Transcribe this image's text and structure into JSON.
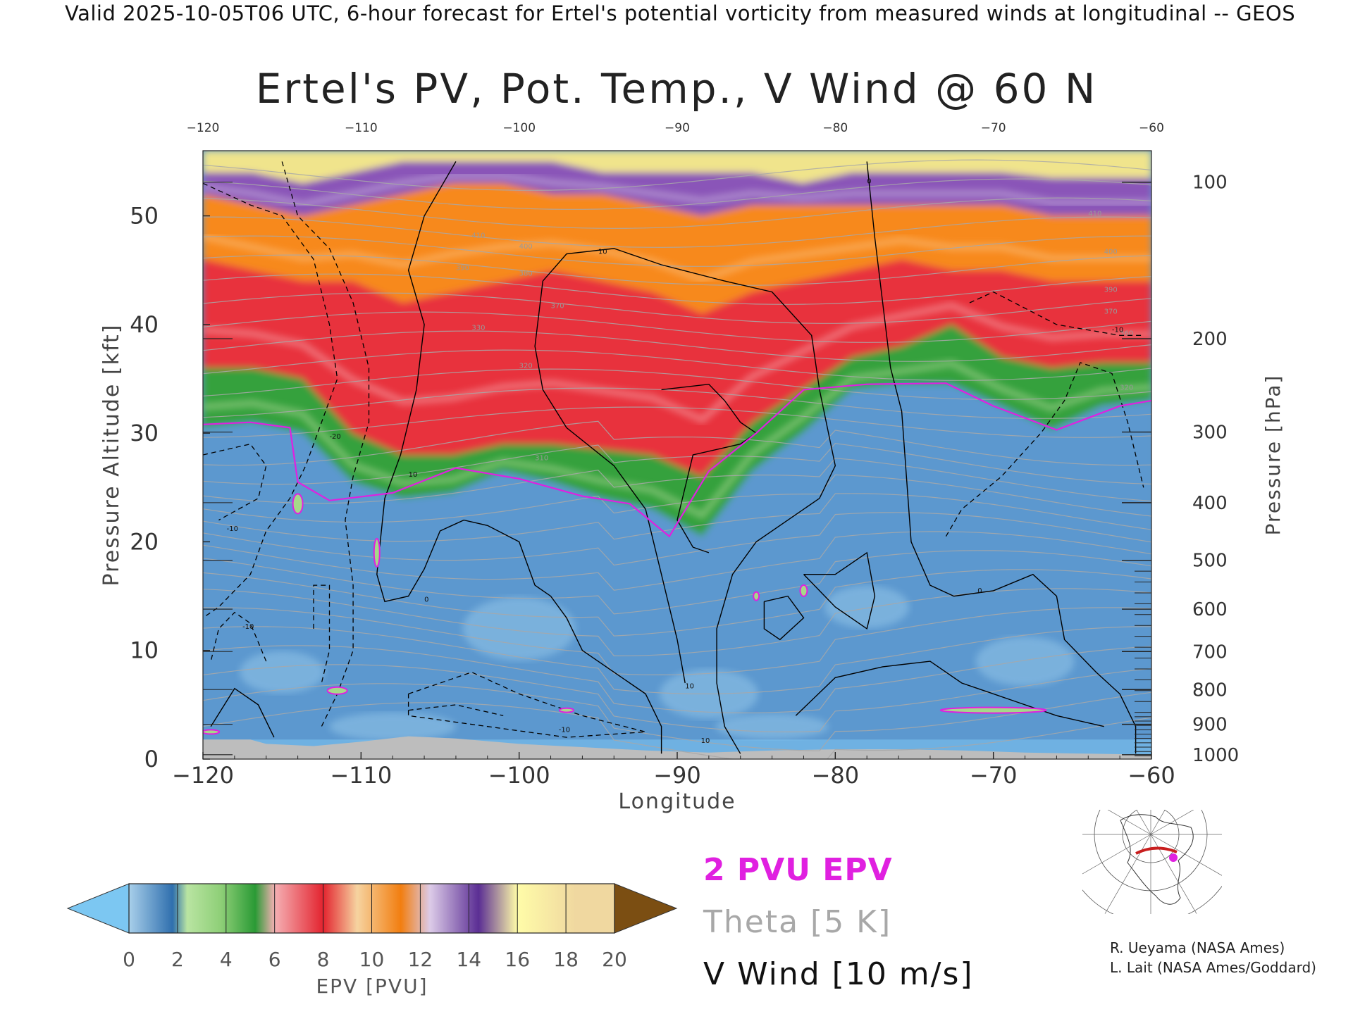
{
  "header": {
    "valid_note": "Valid 2025-10-05T06 UTC, 6-hour forecast for Ertel's potential vorticity from measured winds at longitudinal -- GEOS"
  },
  "colors": {
    "pv_contour": "#e020e0",
    "theta_contour": "#a8a8a8",
    "wind_contour": "#000000",
    "terrain": "#bdbdbd",
    "grid_tick": "#333333"
  },
  "chart_data": {
    "type": "heatmap",
    "title": "Ertel's PV, Pot. Temp., V Wind @ 60 N",
    "xlabel": "Longitude",
    "ylabel_left": "Pressure Altitude [kft]",
    "ylabel_right": "Pressure [hPa]",
    "xlim": [
      -120,
      -60
    ],
    "ylim_kft": [
      0,
      56
    ],
    "x_ticks": [
      -120,
      -110,
      -100,
      -90,
      -80,
      -70,
      -60
    ],
    "x_ticks_top": [
      -120,
      -110,
      -100,
      -90,
      -80,
      -70,
      -60
    ],
    "y_ticks_left": [
      0,
      10,
      20,
      30,
      40,
      50
    ],
    "pressure_ticks": [
      {
        "label": "100",
        "kft": 53.1
      },
      {
        "label": "200",
        "kft": 38.7
      },
      {
        "label": "300",
        "kft": 30.1
      },
      {
        "label": "400",
        "kft": 23.6
      },
      {
        "label": "500",
        "kft": 18.3
      },
      {
        "label": "600",
        "kft": 13.8
      },
      {
        "label": "700",
        "kft": 9.9
      },
      {
        "label": "800",
        "kft": 6.4
      },
      {
        "label": "900",
        "kft": 3.2
      },
      {
        "label": "1000",
        "kft": 0.4
      }
    ],
    "tropopause_2pvu_kft": [
      {
        "lon": -120,
        "kft": 30.8
      },
      {
        "lon": -117,
        "kft": 31.0
      },
      {
        "lon": -114.5,
        "kft": 30.5
      },
      {
        "lon": -114,
        "kft": 25.5
      },
      {
        "lon": -112,
        "kft": 23.8
      },
      {
        "lon": -108,
        "kft": 24.5
      },
      {
        "lon": -104,
        "kft": 26.8
      },
      {
        "lon": -100,
        "kft": 25.8
      },
      {
        "lon": -96,
        "kft": 24.2
      },
      {
        "lon": -93,
        "kft": 23.5
      },
      {
        "lon": -90.5,
        "kft": 20.5
      },
      {
        "lon": -88,
        "kft": 26.5
      },
      {
        "lon": -85,
        "kft": 30.0
      },
      {
        "lon": -82,
        "kft": 34.0
      },
      {
        "lon": -78,
        "kft": 34.5
      },
      {
        "lon": -73,
        "kft": 34.6
      },
      {
        "lon": -70,
        "kft": 32.5
      },
      {
        "lon": -66,
        "kft": 30.3
      },
      {
        "lon": -62,
        "kft": 32.5
      },
      {
        "lon": -60,
        "kft": 33.0
      }
    ],
    "pv_bands_kft": [
      {
        "range": "0-2",
        "top": [
          30.5,
          31,
          30,
          25.5,
          24,
          24.5,
          26.5,
          25.5,
          24,
          23,
          20.5,
          26.5,
          30,
          34,
          34.5,
          34.5,
          32.5,
          30.3,
          32.5,
          33
        ]
      },
      {
        "range": "2-6",
        "top": [
          36,
          36,
          35,
          30,
          28,
          28,
          29,
          29,
          28.5,
          28,
          26,
          31,
          34,
          37,
          38,
          40,
          37,
          36,
          36.5,
          36.5
        ]
      },
      {
        "range": "6-12",
        "top": [
          46,
          45,
          44,
          44,
          42,
          43,
          44,
          45,
          44,
          43,
          41,
          43,
          44,
          45,
          46,
          45,
          45,
          44,
          44,
          44
        ]
      },
      {
        "range": "12-14",
        "top": [
          52,
          51,
          50,
          51,
          52,
          53,
          53,
          52,
          52,
          51,
          50,
          51,
          51,
          51,
          51,
          51,
          51,
          50,
          50,
          50
        ]
      },
      {
        "range": "14-17",
        "top": [
          54,
          54,
          53,
          54,
          55,
          55,
          55,
          55,
          54,
          54,
          54,
          54,
          53,
          54,
          54,
          54,
          54,
          53.5,
          53.5,
          53.5
        ]
      },
      {
        "range": "17-20",
        "top": [
          56,
          56,
          56,
          56,
          56,
          56,
          56,
          56,
          56,
          56,
          56,
          56,
          56,
          56,
          56,
          56,
          56,
          56,
          56,
          56
        ]
      }
    ],
    "theta_labels": [
      "310",
      "320",
      "330",
      "370",
      "380",
      "390",
      "400",
      "410"
    ],
    "wind_contour_labels": [
      "0",
      "10",
      "-10",
      "-20"
    ],
    "colorbar": {
      "label": "EPV [PVU]",
      "ticks": [
        "0",
        "2",
        "4",
        "6",
        "8",
        "10",
        "12",
        "14",
        "16",
        "18",
        "20"
      ],
      "colors": [
        "#79c8f2",
        "#9ec9e6",
        "#2f73b3",
        "#98d081",
        "#d4eaa0",
        "#2e9c39",
        "#a0d890",
        "#f39aa0",
        "#e8313a",
        "#f7c17a",
        "#ffb066",
        "#f27d12",
        "#c9b4d8",
        "#efe6f2",
        "#6a3ea0",
        "#d0a0dc",
        "#fffaa0",
        "#f0d088",
        "#7b4e12"
      ]
    },
    "legend": {
      "pv": "2 PVU EPV",
      "theta": "Theta [5 K]",
      "wind": "V Wind [10 m/s]"
    },
    "inset_map": {
      "description_label": "",
      "lat": 60,
      "lon_range": [
        -120,
        -60
      ]
    }
  },
  "credits": {
    "line1": "R. Ueyama (NASA Ames)",
    "line2": "L. Lait (NASA Ames/Goddard)"
  }
}
